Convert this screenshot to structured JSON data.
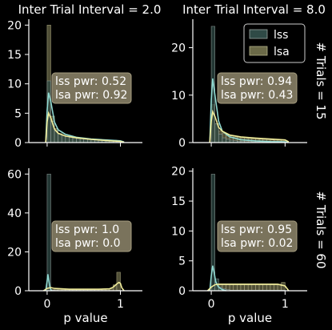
{
  "colors": {
    "background": "#000000",
    "axes": "#ffffff",
    "lss_fill": "#2f4a46",
    "lss_edge": "#9aa6a2",
    "lss_kde": "#8fd8d0",
    "lsa_fill": "#6b6a48",
    "lsa_edge": "#b6b38a",
    "lsa_kde": "#f0ec9a",
    "annot_box": "#7a735c",
    "annot_edge": "#a69e80"
  },
  "legend": {
    "position": "top-right",
    "items": [
      {
        "label": "lss",
        "color_key": "lss"
      },
      {
        "label": "lsa",
        "color_key": "lsa"
      }
    ]
  },
  "chart_data": [
    {
      "type": "histogram",
      "title": "Inter Trial Interval = 2.0",
      "xlabel": "",
      "row_label": "",
      "ylim": [
        0,
        21
      ],
      "yticks": [
        0,
        5,
        10,
        15,
        20
      ],
      "xlim": [
        -0.25,
        1.3
      ],
      "xticks": [
        0,
        1
      ],
      "annotation": [
        "lss pwr: 0.52",
        "lsa pwr: 0.92"
      ],
      "bin_edges": [
        0,
        0.05,
        0.1,
        0.15,
        0.2,
        0.25,
        0.3,
        0.35,
        0.4,
        0.45,
        0.5,
        0.55,
        0.6,
        0.65,
        0.7,
        0.75,
        0.8,
        0.85,
        0.9,
        0.95,
        1.0
      ],
      "series": [
        {
          "name": "lss",
          "values": [
            10.5,
            3.6,
            2.0,
            1.5,
            1.2,
            1.0,
            0.9,
            0.8,
            0.7,
            0.65,
            0.6,
            0.55,
            0.5,
            0.5,
            0.45,
            0.45,
            0.4,
            0.4,
            0.4,
            0.35
          ]
        },
        {
          "name": "lsa",
          "values": [
            20.0,
            4.5,
            2.4,
            1.5,
            1.2,
            1.0,
            0.9,
            0.8,
            0.7,
            0.6,
            0.55,
            0.5,
            0.45,
            0.4,
            0.35,
            0.3,
            0.3,
            0.3,
            0.25,
            0.2
          ]
        }
      ],
      "kde": [
        {
          "name": "lss",
          "x": [
            -0.02,
            0.0,
            0.02,
            0.05,
            0.1,
            0.15,
            0.25,
            0.4,
            0.6,
            0.8,
            1.0,
            1.05
          ],
          "y": [
            0.0,
            5.5,
            8.5,
            7.0,
            3.5,
            2.2,
            1.4,
            0.9,
            0.6,
            0.45,
            0.3,
            0.1
          ]
        },
        {
          "name": "lsa",
          "x": [
            -0.02,
            0.0,
            0.02,
            0.05,
            0.1,
            0.15,
            0.25,
            0.4,
            0.6,
            0.8,
            1.0,
            1.05
          ],
          "y": [
            0.0,
            3.5,
            5.0,
            4.2,
            2.3,
            1.6,
            1.1,
            0.8,
            0.55,
            0.35,
            0.2,
            0.05
          ]
        }
      ]
    },
    {
      "type": "histogram",
      "title": "Inter Trial Interval = 8.0",
      "xlabel": "",
      "row_label": "# Trials = 15",
      "ylim": [
        0,
        26
      ],
      "yticks": [
        0,
        10,
        20
      ],
      "xlim": [
        -0.25,
        1.3
      ],
      "xticks": [
        0,
        1
      ],
      "annotation": [
        "lss pwr: 0.94",
        "lsa pwr: 0.43"
      ],
      "bin_edges": [
        0,
        0.05,
        0.1,
        0.15,
        0.2,
        0.25,
        0.3,
        0.35,
        0.4,
        0.45,
        0.5,
        0.55,
        0.6,
        0.65,
        0.7,
        0.75,
        0.8,
        0.85,
        0.9,
        0.95,
        1.0
      ],
      "series": [
        {
          "name": "lss",
          "values": [
            24.5,
            4.0,
            1.8,
            1.0,
            0.7,
            0.5,
            0.4,
            0.3,
            0.25,
            0.2,
            0.2,
            0.15,
            0.15,
            0.1,
            0.1,
            0.1,
            0.1,
            0.1,
            0.1,
            0.1
          ]
        },
        {
          "name": "lsa",
          "values": [
            8.0,
            4.0,
            2.5,
            2.0,
            1.6,
            1.4,
            1.2,
            1.1,
            1.0,
            0.9,
            0.85,
            0.8,
            0.75,
            0.7,
            0.65,
            0.6,
            0.55,
            0.5,
            0.5,
            0.5
          ]
        }
      ],
      "kde": [
        {
          "name": "lss",
          "x": [
            -0.02,
            0.0,
            0.02,
            0.05,
            0.1,
            0.15,
            0.25,
            0.4,
            0.6,
            0.8,
            1.0,
            1.05
          ],
          "y": [
            0.0,
            9.0,
            13.5,
            10.0,
            4.5,
            2.4,
            1.2,
            0.6,
            0.35,
            0.2,
            0.15,
            0.05
          ]
        },
        {
          "name": "lsa",
          "x": [
            -0.02,
            0.0,
            0.02,
            0.05,
            0.1,
            0.15,
            0.25,
            0.4,
            0.6,
            0.8,
            1.0,
            1.05
          ],
          "y": [
            0.0,
            4.5,
            6.5,
            5.5,
            3.2,
            2.4,
            1.6,
            1.2,
            0.95,
            0.75,
            0.55,
            0.15
          ]
        }
      ]
    },
    {
      "type": "histogram",
      "title": "",
      "xlabel": "p value",
      "row_label": "",
      "ylim": [
        0,
        63
      ],
      "yticks": [
        0,
        20,
        40,
        60
      ],
      "xlim": [
        -0.25,
        1.3
      ],
      "xticks": [
        0,
        1
      ],
      "annotation": [
        "lss pwr: 1.0",
        "lsa pwr: 0.0"
      ],
      "bin_edges": [
        0,
        0.05,
        0.1,
        0.15,
        0.2,
        0.25,
        0.3,
        0.35,
        0.4,
        0.45,
        0.5,
        0.55,
        0.6,
        0.65,
        0.7,
        0.75,
        0.8,
        0.85,
        0.9,
        0.95,
        1.0
      ],
      "series": [
        {
          "name": "lss",
          "values": [
            60.0,
            0.3,
            0.2,
            0.1,
            0.1,
            0.1,
            0.1,
            0.1,
            0.1,
            0.1,
            0.1,
            0.1,
            0.1,
            0.1,
            0.1,
            0.1,
            0.1,
            0.1,
            0.1,
            0.2
          ]
        },
        {
          "name": "lsa",
          "values": [
            0.5,
            0.6,
            0.6,
            0.6,
            0.6,
            0.6,
            0.5,
            0.5,
            0.5,
            0.5,
            0.5,
            0.5,
            0.5,
            0.6,
            0.6,
            0.7,
            0.8,
            1.0,
            3.0,
            9.5
          ]
        }
      ],
      "kde": [
        {
          "name": "lss",
          "x": [
            -0.02,
            0.0,
            0.01,
            0.02,
            0.04,
            0.06
          ],
          "y": [
            0.0,
            5.0,
            8.5,
            6.0,
            1.5,
            0.0
          ]
        },
        {
          "name": "lsa",
          "x": [
            -0.05,
            0.0,
            0.05,
            0.1,
            0.3,
            0.5,
            0.7,
            0.85,
            0.9,
            0.95,
            0.98,
            1.0,
            1.02,
            1.05
          ],
          "y": [
            0.0,
            1.2,
            1.6,
            1.2,
            0.8,
            0.8,
            0.8,
            1.0,
            1.8,
            3.5,
            4.3,
            3.8,
            1.5,
            0.0
          ]
        }
      ]
    },
    {
      "type": "histogram",
      "title": "",
      "xlabel": "p value",
      "row_label": "# Trials = 60",
      "ylim": [
        0,
        20.5
      ],
      "yticks": [
        0,
        5,
        10,
        15,
        20
      ],
      "xlim": [
        -0.25,
        1.3
      ],
      "xticks": [
        0,
        1
      ],
      "annotation": [
        "lss pwr: 0.95",
        "lsa pwr: 0.02"
      ],
      "bin_edges": [
        0,
        0.05,
        0.1,
        0.15,
        0.2,
        0.25,
        0.3,
        0.35,
        0.4,
        0.45,
        0.5,
        0.55,
        0.6,
        0.65,
        0.7,
        0.75,
        0.8,
        0.85,
        0.9,
        0.95,
        1.0
      ],
      "series": [
        {
          "name": "lss",
          "values": [
            19.5,
            2.0,
            0.6,
            0.3,
            0.2,
            0.1,
            0.1,
            0.1,
            0.1,
            0.1,
            0.1,
            0.1,
            0.1,
            0.1,
            0.1,
            0.1,
            0.1,
            0.1,
            0.1,
            0.1
          ]
        },
        {
          "name": "lsa",
          "values": [
            0.4,
            0.8,
            1.0,
            1.0,
            1.0,
            1.0,
            1.0,
            1.0,
            1.0,
            1.0,
            1.0,
            1.0,
            1.0,
            1.0,
            1.0,
            1.0,
            1.0,
            1.0,
            1.1,
            1.4
          ]
        }
      ],
      "kde": [
        {
          "name": "lss",
          "x": [
            -0.02,
            0.0,
            0.02,
            0.04,
            0.06,
            0.1,
            0.15,
            0.2
          ],
          "y": [
            0.0,
            2.5,
            4.2,
            3.0,
            1.5,
            0.6,
            0.2,
            0.0
          ]
        },
        {
          "name": "lsa",
          "x": [
            -0.05,
            0.0,
            0.05,
            0.1,
            0.3,
            0.5,
            0.7,
            0.9,
            1.0,
            1.05
          ],
          "y": [
            0.0,
            0.6,
            1.0,
            1.1,
            1.1,
            1.1,
            1.1,
            1.1,
            0.8,
            0.0
          ]
        }
      ]
    }
  ]
}
